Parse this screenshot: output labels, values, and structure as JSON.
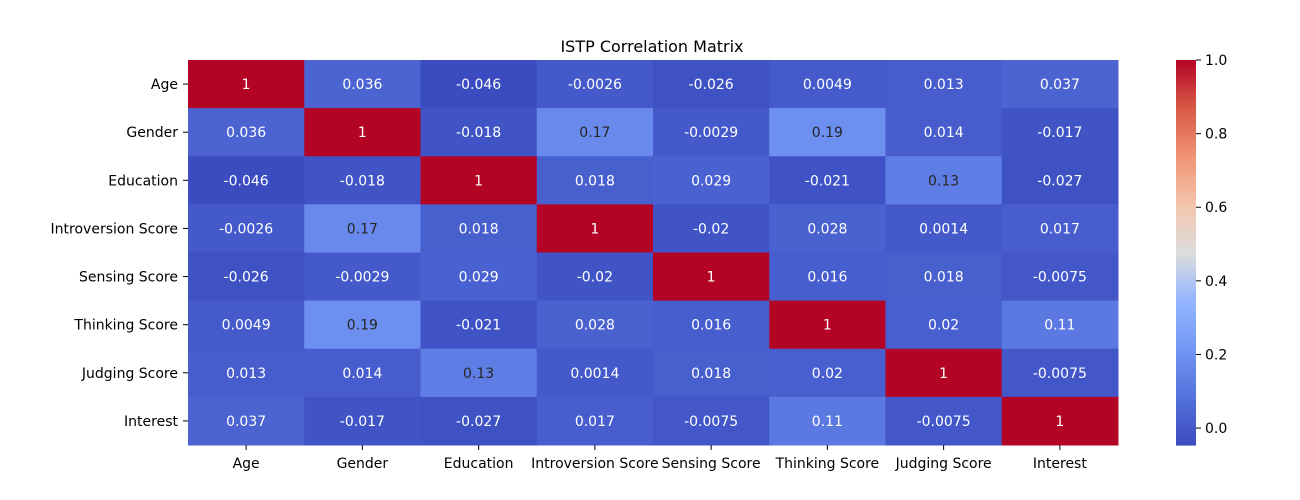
{
  "chart_data": {
    "type": "heatmap",
    "title": "ISTP Correlation Matrix",
    "row_labels": [
      "Age",
      "Gender",
      "Education",
      "Introversion Score",
      "Sensing Score",
      "Thinking Score",
      "Judging Score",
      "Interest"
    ],
    "col_labels": [
      "Age",
      "Gender",
      "Education",
      "Introversion Score",
      "Sensing Score",
      "Thinking Score",
      "Judging Score",
      "Interest"
    ],
    "values": [
      [
        1,
        0.036,
        -0.046,
        -0.0026,
        -0.026,
        0.0049,
        0.013,
        0.037
      ],
      [
        0.036,
        1,
        -0.018,
        0.17,
        -0.0029,
        0.19,
        0.014,
        -0.017
      ],
      [
        -0.046,
        -0.018,
        1,
        0.018,
        0.029,
        -0.021,
        0.13,
        -0.027
      ],
      [
        -0.0026,
        0.17,
        0.018,
        1,
        -0.02,
        0.028,
        0.0014,
        0.017
      ],
      [
        -0.026,
        -0.0029,
        0.029,
        -0.02,
        1,
        0.016,
        0.018,
        -0.0075
      ],
      [
        0.0049,
        0.19,
        -0.021,
        0.028,
        0.016,
        1,
        0.02,
        0.11
      ],
      [
        0.013,
        0.014,
        0.13,
        0.0014,
        0.018,
        0.02,
        1,
        -0.0075
      ],
      [
        0.037,
        -0.017,
        -0.027,
        0.017,
        -0.0075,
        0.11,
        -0.0075,
        1
      ]
    ],
    "color_scale": {
      "name": "coolwarm",
      "range": [
        -0.046,
        1
      ],
      "ticks": [
        "0.0",
        "0.2",
        "0.4",
        "0.6",
        "0.8",
        "1.0"
      ],
      "tick_values": [
        0.0,
        0.2,
        0.4,
        0.6,
        0.8,
        1.0
      ]
    },
    "annotations": true
  }
}
